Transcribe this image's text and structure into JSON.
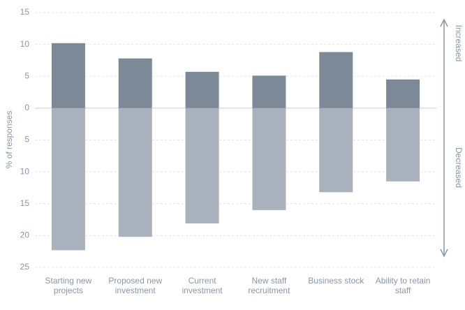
{
  "chart_data": {
    "type": "diverging-bar",
    "y_label": "% of responses",
    "categories": [
      "Starting new projects",
      "Proposed new investment",
      "Current investment",
      "New staff recruitment",
      "Business stock",
      "Ability to retain staff"
    ],
    "series": [
      {
        "name": "Increased",
        "color": "#7c8a98",
        "values": [
          10.2,
          7.8,
          5.7,
          5.1,
          8.8,
          4.5
        ]
      },
      {
        "name": "Decreased",
        "color": "#a8b1bc",
        "values": [
          -22.3,
          -20.2,
          -18.1,
          -16,
          -13.2,
          -11.5
        ]
      }
    ],
    "ylim": [
      -25,
      15
    ],
    "yticks": [
      {
        "value": -25,
        "label": "25"
      },
      {
        "value": -20,
        "label": "20"
      },
      {
        "value": -15,
        "label": "15"
      },
      {
        "value": -10,
        "label": "10"
      },
      {
        "value": -5,
        "label": "5"
      },
      0,
      5,
      10,
      15
    ],
    "grid": true
  }
}
